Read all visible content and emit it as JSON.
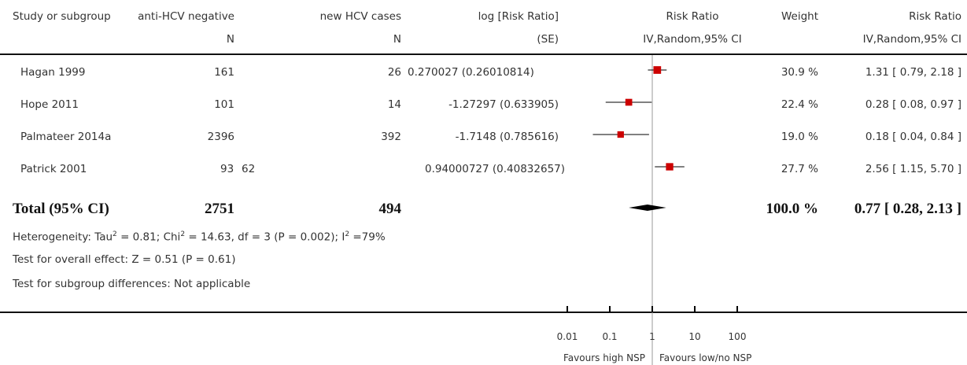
{
  "headers": {
    "study": "Study or subgroup",
    "col1": "anti-HCV negative",
    "col1_sub": "N",
    "col2": "new HCV cases",
    "col2_sub": "N",
    "col3": "log [Risk Ratio]",
    "col3_sub": "(SE)",
    "plot": "Risk Ratio",
    "plot_sub": "IV,Random,95% CI",
    "weight": "Weight",
    "rr": "Risk Ratio",
    "rr_sub": "IV,Random,95% CI"
  },
  "rows": [
    {
      "study": "Hagan 1999",
      "col1": "161",
      "col2": "26",
      "col3": "0.270027 (0.26010814)",
      "weight": "30.9 %",
      "ci": "1.31 [ 0.79, 2.18 ]"
    },
    {
      "study": "Hope 2011",
      "col1": "101",
      "col2": "14",
      "col3": "-1.27297 (0.633905)",
      "weight": "22.4 %",
      "ci": "0.28 [ 0.08, 0.97 ]"
    },
    {
      "study": "Palmateer 2014a",
      "col1": "2396",
      "col2": "392",
      "col3": "-1.7148 (0.785616)",
      "weight": "19.0 %",
      "ci": "0.18 [ 0.04, 0.84 ]"
    },
    {
      "study": "Patrick 2001",
      "col1": "93",
      "col2": "62",
      "col3": "0.94000727 (0.40832657)",
      "weight": "27.7 %",
      "ci": "2.56 [ 1.15, 5.70 ]"
    }
  ],
  "total": {
    "label": "Total (95% CI)",
    "col1": "2751",
    "col2": "494",
    "weight": "100.0 %",
    "ci": "0.77 [ 0.28, 2.13 ]"
  },
  "footnotes": {
    "heterogeneity_pre": "Heterogeneity: Tau",
    "heterogeneity_mid": " = 0.81; Chi",
    "heterogeneity_post": " = 14.63, df = 3 (P = 0.002); I",
    "heterogeneity_end": " =79%",
    "sup": "2",
    "overall": "Test for overall effect: Z = 0.51 (P = 0.61)",
    "subgroup": "Test for subgroup differences: Not applicable"
  },
  "axis": {
    "ticks": [
      "0.01",
      "0.1",
      "1",
      "10",
      "100"
    ],
    "favours_left": "Favours high NSP",
    "favours_right": "Favours low/no NSP"
  },
  "chart_data": {
    "type": "forest",
    "scale": "log",
    "xlim": [
      0.01,
      100
    ],
    "tick_values": [
      0.01,
      0.1,
      1,
      10,
      100
    ],
    "studies": [
      {
        "name": "Hagan 1999",
        "rr": 1.31,
        "lo": 0.79,
        "hi": 2.18,
        "weight": 30.9
      },
      {
        "name": "Hope 2011",
        "rr": 0.28,
        "lo": 0.08,
        "hi": 0.97,
        "weight": 22.4
      },
      {
        "name": "Palmateer 2014a",
        "rr": 0.18,
        "lo": 0.04,
        "hi": 0.84,
        "weight": 19.0
      },
      {
        "name": "Patrick 2001",
        "rr": 2.56,
        "lo": 1.15,
        "hi": 5.7,
        "weight": 27.7
      }
    ],
    "pooled": {
      "rr": 0.77,
      "lo": 0.28,
      "hi": 2.13
    },
    "colors": {
      "marker": "#cc0000",
      "line": "#000000",
      "axis": "#000000",
      "null_line": "#999999"
    }
  }
}
